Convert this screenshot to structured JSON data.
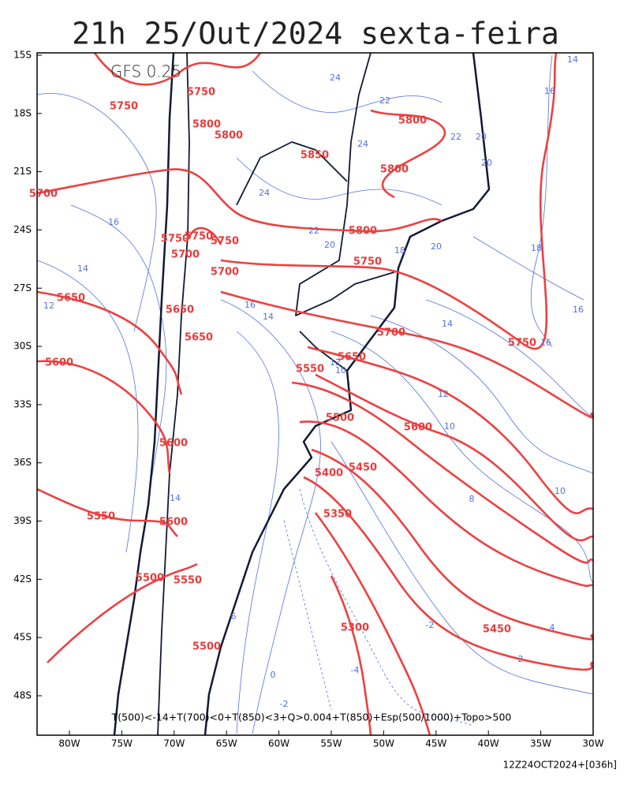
{
  "title": "21h 25/Out/2024 sexta-feira",
  "model": "GFS 0.25",
  "lat_labels": [
    "15S",
    "18S",
    "21S",
    "24S",
    "27S",
    "30S",
    "33S",
    "36S",
    "39S",
    "42S",
    "45S",
    "48S"
  ],
  "lon_labels": [
    "80W",
    "75W",
    "70W",
    "65W",
    "60W",
    "55W",
    "50W",
    "45W",
    "40W",
    "35W",
    "30W"
  ],
  "legend": "T(500)<-14+T(700)<0+T(850)<3+Q>0.004+T(850)+Esp(500/1000)+Topo>500",
  "run": "12Z24OCT2024+[036h]",
  "thickness_labels": [
    "5750",
    "5750",
    "5800",
    "5800",
    "5850",
    "5800",
    "5800",
    "5700",
    "5800",
    "5750",
    "5750",
    "5750",
    "5700",
    "5700",
    "5750",
    "5650",
    "5650",
    "5650",
    "5700",
    "5750",
    "5600",
    "5650",
    "5550",
    "5500",
    "5600",
    "5600",
    "5450",
    "5400",
    "5550",
    "5600",
    "5350",
    "5500",
    "5550",
    "5300",
    "5450",
    "5500"
  ],
  "temperature_labels": [
    "14",
    "16",
    "24",
    "22",
    "20",
    "22",
    "24",
    "20",
    "24",
    "22",
    "20",
    "18",
    "20",
    "18",
    "16",
    "14",
    "12",
    "16",
    "14",
    "16",
    "16",
    "14",
    "12",
    "10",
    "10",
    "12",
    "10",
    "8",
    "14",
    "6",
    "4",
    "2",
    "-2",
    "-4",
    "-2",
    "0"
  ]
}
